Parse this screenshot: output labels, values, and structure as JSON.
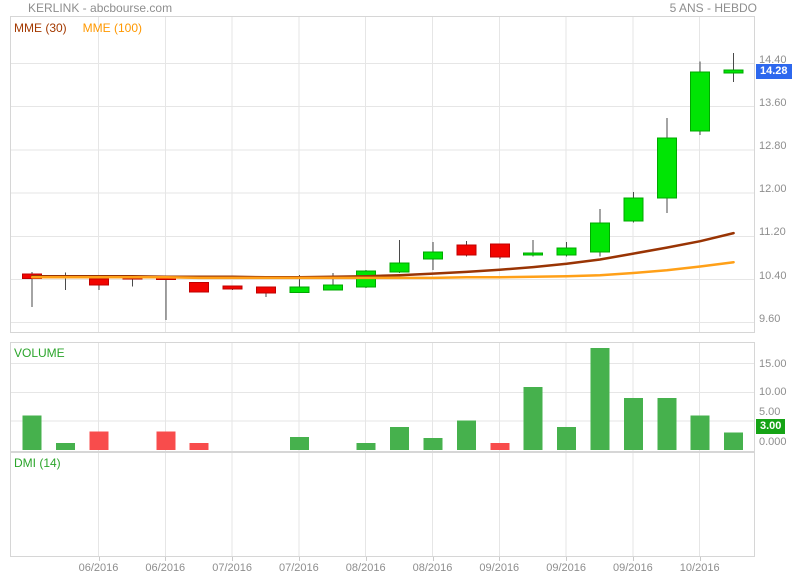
{
  "header": {
    "title": "KERLINK - abcbourse.com",
    "range_label": "5 ANS - HEBDO"
  },
  "legend": {
    "mme30": "MME (30)",
    "mme100": "MME (100)"
  },
  "panels": {
    "volume_label": "VOLUME",
    "dmi_label": "DMI (14)"
  },
  "badges": {
    "last_price": "14.28",
    "last_volume": "3.00"
  },
  "colors": {
    "candle_up": "#00e504",
    "candle_up_border": "#00a800",
    "candle_down": "#f20400",
    "candle_down_border": "#c00000",
    "wick": "#4a4a4a",
    "vol_up": "#46b14d",
    "vol_down": "#f84c4c",
    "mme30": "#993404",
    "mme100": "#ffa018",
    "grid": "#e6e6e6",
    "panel_border": "#d6d6d6",
    "axis_text": "#8e8e8e",
    "indicator_label_green": "#2ba52b",
    "badge_blue": "#2d68ee",
    "badge_green": "#15a315"
  },
  "chart_data": {
    "type": "candlestick",
    "title": "KERLINK - abcbourse.com",
    "timeframe": "5 ANS - HEBDO",
    "grid": true,
    "x_tick_labels": [
      "06/2016",
      "06/2016",
      "07/2016",
      "07/2016",
      "08/2016",
      "08/2016",
      "09/2016",
      "09/2016",
      "09/2016",
      "10/2016"
    ],
    "price_axis": {
      "tick_labels": [
        "14.40",
        "13.60",
        "12.80",
        "12.00",
        "11.20",
        "10.40",
        "9.60"
      ],
      "range": [
        9.2,
        15.3
      ],
      "last_price": 14.28
    },
    "volume_axis": {
      "tick_labels": [
        "15.00",
        "10.00",
        "5.00",
        "0.000"
      ],
      "range": [
        0,
        19
      ],
      "last_volume": 3.0
    },
    "candles": [
      {
        "o": 10.5,
        "h": 10.54,
        "l": 9.89,
        "c": 10.42,
        "d": "r"
      },
      {
        "o": 10.47,
        "h": 10.53,
        "l": 10.21,
        "c": 10.45,
        "d": "r"
      },
      {
        "o": 10.41,
        "h": 10.42,
        "l": 10.21,
        "c": 10.3,
        "d": "r"
      },
      {
        "o": 10.45,
        "h": 10.46,
        "l": 10.27,
        "c": 10.44,
        "d": "r"
      },
      {
        "o": 10.44,
        "h": 10.46,
        "l": 9.65,
        "c": 10.42,
        "d": "r"
      },
      {
        "o": 10.34,
        "h": 10.35,
        "l": 10.16,
        "c": 10.17,
        "d": "r"
      },
      {
        "o": 10.28,
        "h": 10.29,
        "l": 10.21,
        "c": 10.22,
        "d": "r"
      },
      {
        "o": 10.26,
        "h": 10.27,
        "l": 10.08,
        "c": 10.15,
        "d": "r"
      },
      {
        "o": 10.16,
        "h": 10.48,
        "l": 10.15,
        "c": 10.26,
        "d": "g"
      },
      {
        "o": 10.21,
        "h": 10.52,
        "l": 10.2,
        "c": 10.3,
        "d": "g"
      },
      {
        "o": 10.26,
        "h": 10.58,
        "l": 10.24,
        "c": 10.56,
        "d": "g"
      },
      {
        "o": 10.54,
        "h": 11.13,
        "l": 10.52,
        "c": 10.71,
        "d": "g"
      },
      {
        "o": 10.78,
        "h": 11.09,
        "l": 10.58,
        "c": 10.91,
        "d": "g"
      },
      {
        "o": 11.04,
        "h": 11.11,
        "l": 10.83,
        "c": 10.85,
        "d": "r"
      },
      {
        "o": 11.06,
        "h": 11.07,
        "l": 10.78,
        "c": 10.82,
        "d": "r"
      },
      {
        "o": 10.85,
        "h": 11.13,
        "l": 10.83,
        "c": 10.89,
        "d": "g"
      },
      {
        "o": 10.85,
        "h": 11.09,
        "l": 10.83,
        "c": 10.98,
        "d": "g"
      },
      {
        "o": 10.91,
        "h": 11.71,
        "l": 10.83,
        "c": 11.45,
        "d": "g"
      },
      {
        "o": 11.48,
        "h": 12.02,
        "l": 11.46,
        "c": 11.91,
        "d": "g"
      },
      {
        "o": 11.91,
        "h": 13.39,
        "l": 11.63,
        "c": 13.02,
        "d": "g"
      },
      {
        "o": 13.15,
        "h": 14.44,
        "l": 13.08,
        "c": 14.24,
        "d": "g"
      },
      {
        "o": 14.22,
        "h": 14.59,
        "l": 14.06,
        "c": 14.28,
        "d": "g"
      }
    ],
    "volumes": [
      {
        "v": 6.0,
        "d": "g"
      },
      {
        "v": 1.2,
        "d": "g"
      },
      {
        "v": 3.2,
        "d": "r"
      },
      {
        "v": 0,
        "d": "g"
      },
      {
        "v": 3.2,
        "d": "r"
      },
      {
        "v": 1.2,
        "d": "r"
      },
      {
        "v": 0,
        "d": "g"
      },
      {
        "v": 0,
        "d": "g"
      },
      {
        "v": 2.3,
        "d": "g"
      },
      {
        "v": 0,
        "d": "g"
      },
      {
        "v": 1.2,
        "d": "g"
      },
      {
        "v": 4.0,
        "d": "g"
      },
      {
        "v": 2.1,
        "d": "g"
      },
      {
        "v": 5.1,
        "d": "g"
      },
      {
        "v": 1.2,
        "d": "r"
      },
      {
        "v": 10.9,
        "d": "g"
      },
      {
        "v": 4.0,
        "d": "g"
      },
      {
        "v": 17.7,
        "d": "g"
      },
      {
        "v": 9.0,
        "d": "g"
      },
      {
        "v": 9.0,
        "d": "g"
      },
      {
        "v": 6.0,
        "d": "g"
      },
      {
        "v": 3.0,
        "d": "g"
      }
    ],
    "series": [
      {
        "name": "MME (30)",
        "color_key": "mme30",
        "values": [
          10.46,
          10.46,
          10.46,
          10.46,
          10.45,
          10.45,
          10.45,
          10.44,
          10.44,
          10.45,
          10.46,
          10.48,
          10.51,
          10.54,
          10.58,
          10.63,
          10.69,
          10.77,
          10.88,
          10.99,
          11.11,
          11.26
        ]
      },
      {
        "name": "MME (100)",
        "color_key": "mme100",
        "values": [
          10.44,
          10.44,
          10.44,
          10.44,
          10.44,
          10.43,
          10.43,
          10.43,
          10.43,
          10.43,
          10.43,
          10.43,
          10.43,
          10.44,
          10.44,
          10.45,
          10.46,
          10.48,
          10.52,
          10.57,
          10.64,
          10.72
        ]
      }
    ],
    "indicator_panels": [
      {
        "name": "VOLUME"
      },
      {
        "name": "DMI (14)",
        "values": []
      }
    ]
  }
}
